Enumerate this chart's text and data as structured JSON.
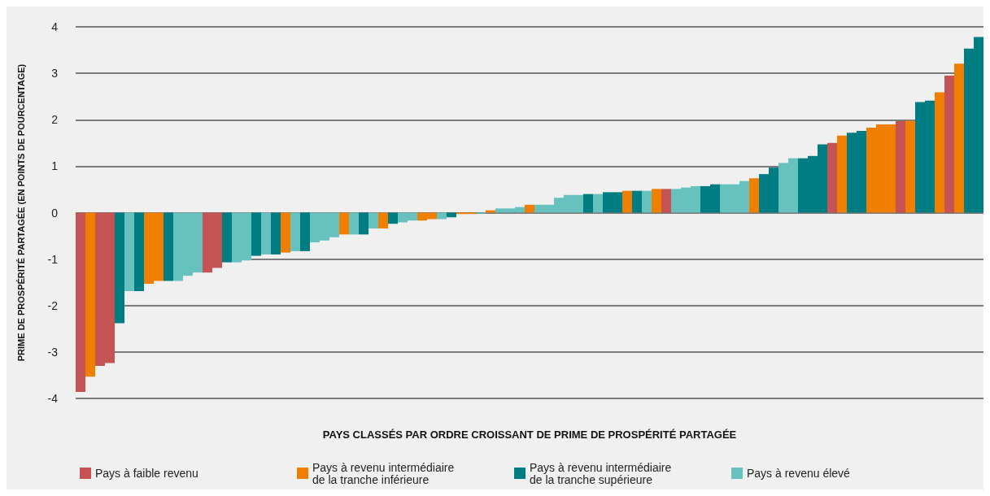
{
  "chart_data": {
    "type": "bar",
    "xlabel": "PAYS CLASSÉS PAR ORDRE CROISSANT DE PRIME DE PROSPÉRITÉ PARTAGÉE",
    "ylabel": "PRIME DE PROSPÉRITÉ PARTAGÉE (EN POINTS DE POURCENTAGE)",
    "categories": [
      null,
      null,
      null,
      null,
      null,
      null,
      null,
      null,
      null,
      null,
      null,
      null,
      null,
      null,
      null,
      null,
      null,
      null,
      null,
      null,
      null,
      null,
      null,
      null,
      null,
      null,
      null,
      null,
      null,
      null,
      null,
      null,
      null,
      null,
      null,
      null,
      null,
      null,
      null,
      null,
      null,
      null,
      null,
      null,
      null,
      null,
      null,
      null,
      null,
      null,
      null,
      null,
      null,
      null,
      null,
      null,
      null,
      null,
      null,
      null,
      null,
      null,
      null,
      null,
      null,
      null,
      null,
      null,
      null,
      null,
      null,
      null,
      null,
      null,
      null,
      null,
      null,
      null,
      null,
      null,
      null,
      null,
      null,
      null,
      null,
      null,
      null,
      null,
      null,
      null,
      null,
      null,
      null
    ],
    "series": [
      {
        "name": "Pays à faible revenu",
        "color": "#c55353",
        "values": [
          -3.86,
          null,
          -3.3,
          -3.24,
          null,
          null,
          null,
          null,
          null,
          null,
          null,
          null,
          null,
          -1.29,
          -1.19,
          null,
          null,
          null,
          null,
          null,
          null,
          null,
          null,
          null,
          null,
          null,
          null,
          null,
          null,
          null,
          null,
          null,
          null,
          null,
          null,
          null,
          null,
          null,
          null,
          null,
          null,
          null,
          null,
          null,
          null,
          null,
          null,
          null,
          null,
          null,
          null,
          null,
          null,
          null,
          null,
          null,
          null,
          null,
          null,
          null,
          0.51,
          null,
          null,
          null,
          null,
          null,
          null,
          null,
          null,
          null,
          null,
          null,
          null,
          null,
          null,
          null,
          null,
          1.5,
          null,
          null,
          null,
          null,
          null,
          null,
          1.97,
          null,
          null,
          null,
          null,
          2.95,
          null,
          null,
          null
        ]
      },
      {
        "name": "Pays à revenu intermédiaire de la tranche inférieure",
        "color": "#f07f00",
        "values": [
          null,
          -3.53,
          null,
          null,
          null,
          null,
          null,
          -1.53,
          -1.47,
          null,
          null,
          null,
          null,
          null,
          null,
          null,
          null,
          null,
          null,
          null,
          null,
          -0.86,
          null,
          null,
          null,
          null,
          null,
          -0.47,
          null,
          null,
          null,
          -0.34,
          null,
          null,
          null,
          -0.17,
          -0.14,
          null,
          null,
          -0.03,
          -0.03,
          null,
          0.05,
          null,
          null,
          null,
          0.17,
          null,
          null,
          null,
          null,
          null,
          null,
          null,
          null,
          null,
          0.47,
          null,
          null,
          0.51,
          null,
          null,
          null,
          null,
          null,
          null,
          null,
          null,
          null,
          0.74,
          null,
          null,
          null,
          null,
          null,
          null,
          null,
          null,
          1.66,
          null,
          null,
          1.83,
          1.9,
          1.9,
          null,
          1.98,
          null,
          null,
          2.59,
          null,
          3.21,
          null,
          null
        ]
      },
      {
        "name": "Pays à revenu intermédiaire de la tranche supérieure",
        "color": "#007c83",
        "values": [
          null,
          null,
          null,
          null,
          -2.38,
          null,
          -1.69,
          null,
          null,
          -1.47,
          null,
          null,
          null,
          null,
          null,
          -1.07,
          null,
          null,
          -0.93,
          null,
          -0.9,
          null,
          null,
          -0.83,
          null,
          null,
          null,
          null,
          null,
          -0.47,
          null,
          null,
          -0.24,
          null,
          null,
          null,
          null,
          null,
          -0.1,
          null,
          null,
          null,
          null,
          null,
          null,
          null,
          null,
          null,
          null,
          null,
          null,
          null,
          0.4,
          null,
          0.44,
          0.44,
          null,
          0.47,
          null,
          null,
          null,
          null,
          null,
          null,
          0.57,
          0.61,
          null,
          null,
          null,
          null,
          0.83,
          0.97,
          null,
          null,
          1.17,
          1.22,
          1.47,
          null,
          null,
          1.72,
          1.76,
          null,
          null,
          null,
          null,
          null,
          2.38,
          2.41,
          null,
          null,
          null,
          3.53,
          3.78
        ]
      },
      {
        "name": "Pays à revenu élevé",
        "color": "#66c1bf",
        "values": [
          null,
          null,
          null,
          null,
          null,
          -1.69,
          null,
          null,
          null,
          null,
          -1.47,
          -1.36,
          -1.29,
          null,
          null,
          null,
          -1.07,
          -1.03,
          null,
          -0.9,
          null,
          null,
          -0.83,
          null,
          -0.64,
          -0.6,
          -0.53,
          null,
          -0.47,
          null,
          -0.34,
          null,
          null,
          -0.21,
          -0.17,
          null,
          null,
          -0.14,
          null,
          null,
          null,
          -0.02,
          null,
          0.09,
          0.09,
          0.12,
          null,
          0.17,
          0.17,
          0.32,
          0.38,
          0.38,
          null,
          0.4,
          null,
          null,
          null,
          null,
          0.47,
          null,
          null,
          0.51,
          0.54,
          0.57,
          null,
          null,
          0.61,
          0.61,
          0.68,
          null,
          null,
          null,
          1.07,
          1.17,
          null,
          null,
          null,
          null,
          null,
          null,
          null,
          null,
          null,
          null,
          null,
          null,
          null,
          null,
          null,
          null,
          null,
          null,
          null
        ]
      }
    ],
    "ylim": [
      -4,
      4
    ],
    "yticks": [
      -4,
      -3,
      -2,
      -1,
      0,
      1,
      2,
      3,
      4
    ],
    "grid": "y",
    "legend": "bottom left",
    "tick_labels": "y"
  }
}
